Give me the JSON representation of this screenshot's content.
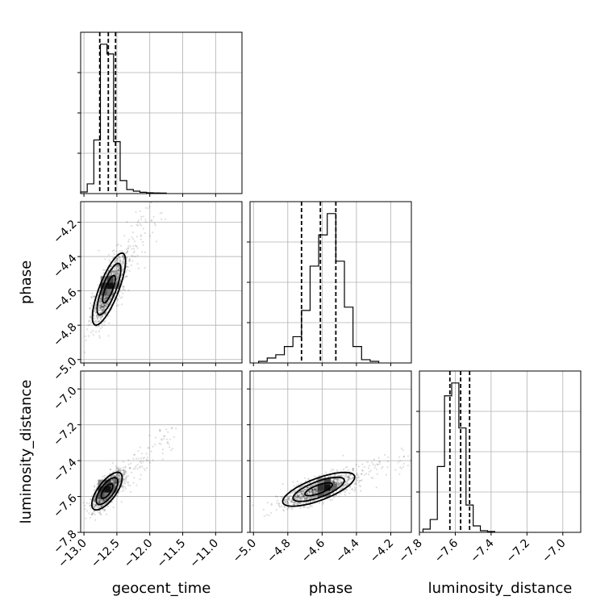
{
  "chart_data": {
    "type": "corner",
    "parameters": [
      "geocent_time",
      "phase",
      "luminosity_distance"
    ],
    "axis_labels": {
      "x": [
        "geocent_time",
        "phase",
        "luminosity_distance"
      ],
      "y": [
        "",
        "phase",
        "luminosity_distance"
      ]
    },
    "ranges": {
      "geocent_time": [
        -13.05,
        -10.6
      ],
      "phase": [
        -5.02,
        -4.08
      ],
      "luminosity_distance": [
        -7.8,
        -6.9
      ]
    },
    "ticks": {
      "geocent_time": [
        -13.0,
        -12.5,
        -12.0,
        -11.5,
        -11.0
      ],
      "phase": [
        -5.0,
        -4.8,
        -4.6,
        -4.4,
        -4.2
      ],
      "luminosity_distance": [
        -7.8,
        -7.6,
        -7.4,
        -7.2,
        -7.0
      ]
    },
    "tick_labels": {
      "geocent_time": [
        "−13.0",
        "−12.5",
        "−12.0",
        "−11.5",
        "−11.0"
      ],
      "phase": [
        "−5.0",
        "−4.8",
        "−4.6",
        "−4.4",
        "−4.2"
      ],
      "luminosity_distance": [
        "−7.8",
        "−7.6",
        "−7.4",
        "−7.2",
        "−7.0"
      ]
    },
    "grid": true,
    "histograms": [
      {
        "param": "geocent_time",
        "bin_edges": [
          -13.05,
          -12.95,
          -12.85,
          -12.75,
          -12.65,
          -12.55,
          -12.45,
          -12.35,
          -12.25,
          -12.15,
          -12.05,
          -11.95,
          -11.85,
          -11.75
        ],
        "counts": [
          0.01,
          0.06,
          0.33,
          0.92,
          0.86,
          0.32,
          0.08,
          0.025,
          0.015,
          0.008,
          0.005,
          0.004,
          0.003
        ],
        "quantiles": [
          -12.76,
          -12.63,
          -12.52
        ]
      },
      {
        "param": "phase",
        "bin_edges": [
          -4.97,
          -4.92,
          -4.87,
          -4.82,
          -4.77,
          -4.72,
          -4.67,
          -4.62,
          -4.57,
          -4.52,
          -4.47,
          -4.42,
          -4.37,
          -4.32,
          -4.27
        ],
        "counts": [
          0.01,
          0.03,
          0.05,
          0.1,
          0.16,
          0.32,
          0.59,
          0.78,
          0.91,
          0.62,
          0.34,
          0.1,
          0.02,
          0.01
        ],
        "quantiles": [
          -4.72,
          -4.61,
          -4.52
        ]
      },
      {
        "param": "luminosity_distance",
        "bin_edges": [
          -7.78,
          -7.74,
          -7.7,
          -7.66,
          -7.62,
          -7.58,
          -7.54,
          -7.5,
          -7.46,
          -7.42,
          -7.38
        ],
        "counts": [
          0.02,
          0.08,
          0.41,
          0.85,
          0.93,
          0.65,
          0.17,
          0.04,
          0.01,
          0.005
        ],
        "quantiles": [
          -7.63,
          -7.57,
          -7.52
        ]
      }
    ],
    "pairs": [
      {
        "x": "geocent_time",
        "y": "phase",
        "center": [
          -12.62,
          -4.59
        ],
        "spread": [
          0.12,
          0.1
        ],
        "correlation": 0.78,
        "peak": [
          -12.6,
          -4.57
        ]
      },
      {
        "x": "geocent_time",
        "y": "luminosity_distance",
        "center": [
          -12.65,
          -7.57
        ],
        "spread": [
          0.11,
          0.05
        ],
        "correlation": 0.7,
        "peak": [
          -12.64,
          -7.56
        ]
      },
      {
        "x": "phase",
        "y": "luminosity_distance",
        "center": [
          -4.62,
          -7.56
        ],
        "spread": [
          0.1,
          0.045
        ],
        "correlation": 0.72,
        "peak": [
          -4.57,
          -7.55
        ]
      }
    ]
  }
}
